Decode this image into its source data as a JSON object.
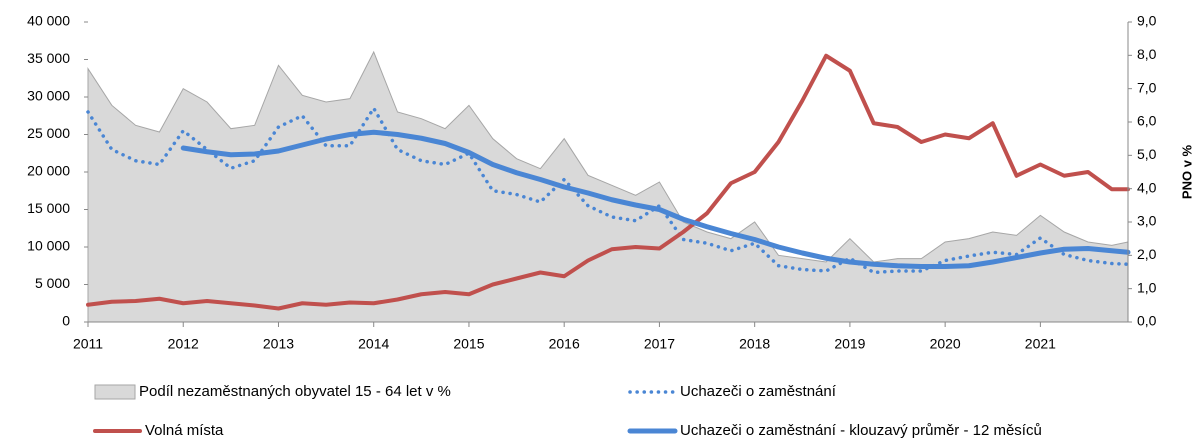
{
  "chart_data": {
    "type": "line",
    "y2label": "PNO v %",
    "x": [
      2011,
      2011.25,
      2011.5,
      2011.75,
      2012,
      2012.25,
      2012.5,
      2012.75,
      2013,
      2013.25,
      2013.5,
      2013.75,
      2014,
      2014.25,
      2014.5,
      2014.75,
      2015,
      2015.25,
      2015.5,
      2015.75,
      2016,
      2016.25,
      2016.5,
      2016.75,
      2017,
      2017.25,
      2017.5,
      2017.75,
      2018,
      2018.25,
      2018.5,
      2018.75,
      2019,
      2019.25,
      2019.5,
      2019.75,
      2020,
      2020.25,
      2020.5,
      2020.75,
      2021,
      2021.25,
      2021.5,
      2021.75,
      2021.92
    ],
    "series": [
      {
        "name": "Podíl nezaměstnaných obyvatel 15 - 64 let v %",
        "color": "#d9d9d9",
        "style": "area",
        "axis": "y2",
        "values": [
          7.6,
          6.5,
          5.9,
          5.7,
          7.0,
          6.6,
          5.8,
          5.9,
          7.7,
          6.8,
          6.6,
          6.7,
          8.1,
          6.3,
          6.1,
          5.8,
          6.5,
          5.5,
          4.9,
          4.6,
          5.5,
          4.4,
          4.1,
          3.8,
          4.2,
          3.0,
          2.7,
          2.5,
          3.0,
          2.0,
          1.9,
          1.8,
          2.5,
          1.8,
          1.9,
          1.9,
          2.4,
          2.5,
          2.7,
          2.6,
          3.2,
          2.7,
          2.4,
          2.3,
          2.4
        ]
      },
      {
        "name": "Uchazeči o zaměstnání",
        "color": "#4a86d4",
        "style": "dotted",
        "values": [
          28000,
          23000,
          21500,
          21000,
          25500,
          23000,
          20500,
          21500,
          26000,
          27500,
          23500,
          23500,
          28500,
          23000,
          21500,
          21000,
          22500,
          17500,
          17000,
          16000,
          19000,
          15500,
          14000,
          13500,
          15500,
          11000,
          10500,
          9500,
          10500,
          7500,
          7000,
          6800,
          8500,
          6600,
          6800,
          6800,
          8200,
          8800,
          9300,
          9000,
          11200,
          9000,
          8200,
          7800,
          7700
        ]
      },
      {
        "name": "Volná místa",
        "color": "#c0504d",
        "style": "solid",
        "values": [
          2300,
          2700,
          2800,
          3100,
          2500,
          2800,
          2500,
          2200,
          1800,
          2500,
          2300,
          2600,
          2500,
          3000,
          3700,
          4000,
          3700,
          5000,
          5800,
          6600,
          6100,
          8200,
          9700,
          10000,
          9800,
          12000,
          14500,
          18500,
          20000,
          24000,
          29500,
          35500,
          33500,
          26500,
          26000,
          24000,
          25000,
          24500,
          26500,
          19500,
          21000,
          19500,
          20000,
          17700,
          17700
        ]
      },
      {
        "name": "Uchazeči o zaměstnání - klouzavý průměr - 12 měsíců",
        "color": "#4a86d4",
        "style": "thick",
        "values": [
          null,
          null,
          null,
          null,
          23200,
          22700,
          22300,
          22400,
          22800,
          23600,
          24400,
          25000,
          25300,
          25000,
          24500,
          23800,
          22600,
          21000,
          19900,
          19000,
          18000,
          17200,
          16300,
          15600,
          15000,
          13700,
          12700,
          11800,
          11000,
          10000,
          9200,
          8500,
          8000,
          7700,
          7500,
          7400,
          7400,
          7500,
          8000,
          8600,
          9200,
          9700,
          9800,
          9500,
          9300
        ]
      }
    ],
    "xlim": [
      2011,
      2021.92
    ],
    "xticks": [
      2011,
      2012,
      2013,
      2014,
      2015,
      2016,
      2017,
      2018,
      2019,
      2020,
      2021
    ],
    "ylim": [
      0,
      40000
    ],
    "yticks": [
      0,
      {
        "value": 5000,
        "label": "5 000"
      },
      {
        "value": 10000,
        "label": "10 000"
      },
      {
        "value": 15000,
        "label": "15 000"
      },
      {
        "value": 20000,
        "label": "20 000"
      },
      {
        "value": 25000,
        "label": "25 000"
      },
      {
        "value": 30000,
        "label": "30 000"
      },
      {
        "value": 35000,
        "label": "35 000"
      },
      {
        "value": 40000,
        "label": "40 000"
      }
    ],
    "y2lim": [
      0,
      9
    ],
    "y2ticks": [
      {
        "value": 0,
        "label": "0,0"
      },
      {
        "value": 1,
        "label": "1,0"
      },
      {
        "value": 2,
        "label": "2,0"
      },
      {
        "value": 3,
        "label": "3,0"
      },
      {
        "value": 4,
        "label": "4,0"
      },
      {
        "value": 5,
        "label": "5,0"
      },
      {
        "value": 6,
        "label": "6,0"
      },
      {
        "value": 7,
        "label": "7,0"
      },
      {
        "value": 8,
        "label": "8,0"
      },
      {
        "value": 9,
        "label": "9,0"
      }
    ],
    "grid": false
  }
}
